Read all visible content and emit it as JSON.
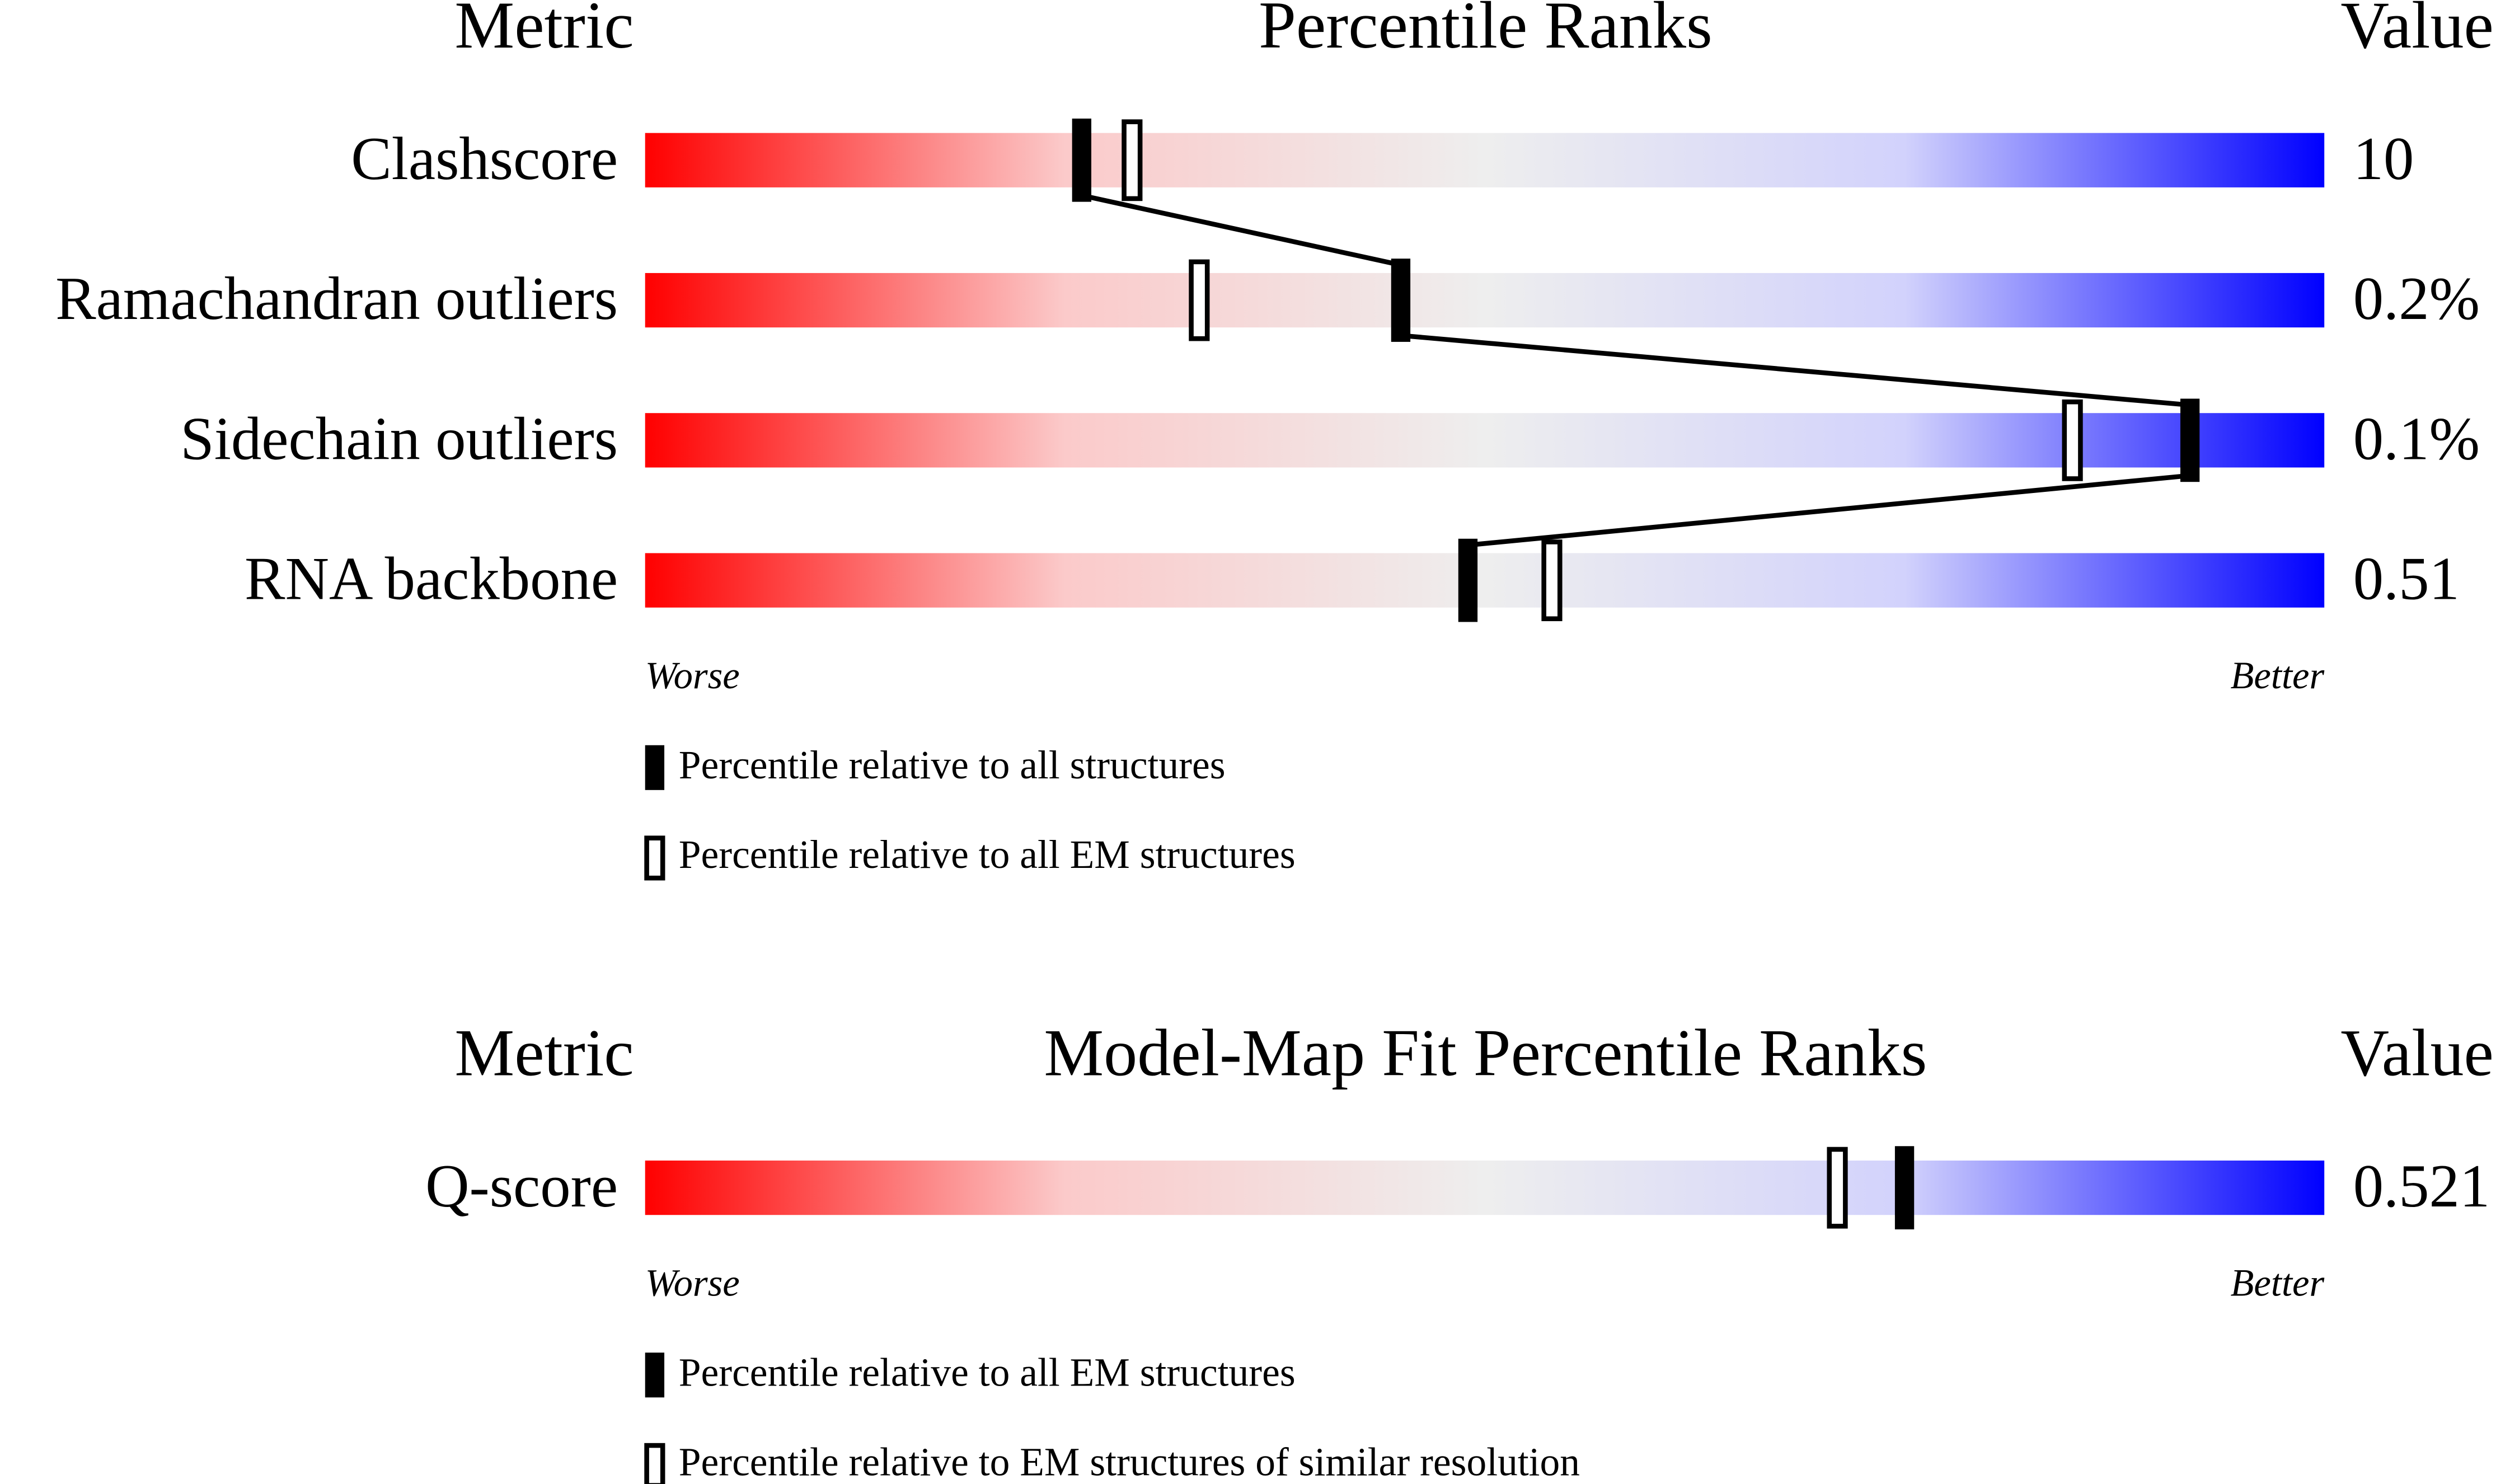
{
  "chart_data": [
    {
      "type": "percentile-slider",
      "header": {
        "metric": "Metric",
        "title": "Percentile Ranks",
        "value": "Value"
      },
      "categories": [
        "Clashscore",
        "Ramachandran outliers",
        "Sidechain outliers",
        "RNA backbone"
      ],
      "metric_values": [
        "10",
        "0.2%",
        "0.1%",
        "0.51"
      ],
      "series": [
        {
          "name": "Percentile relative to all structures",
          "style": "filled",
          "color": "#000000",
          "values": [
            26,
            45,
            92,
            49
          ]
        },
        {
          "name": "Percentile relative to all EM structures",
          "style": "open",
          "color": "#000000",
          "values": [
            29,
            33,
            85,
            54
          ]
        }
      ],
      "xlim": [
        0,
        100
      ],
      "worse": "Worse",
      "better": "Better",
      "connect": "filled",
      "gradient": [
        "#ff0000",
        "#fbcaca",
        "#eeeeee",
        "#d2d2fc",
        "#0000ff"
      ]
    },
    {
      "type": "percentile-slider",
      "header": {
        "metric": "Metric",
        "title": "Model-Map Fit Percentile Ranks",
        "value": "Value"
      },
      "categories": [
        "Q-score"
      ],
      "metric_values": [
        "0.521"
      ],
      "series": [
        {
          "name": "Percentile relative to all EM structures",
          "style": "filled",
          "color": "#000000",
          "values": [
            75
          ]
        },
        {
          "name": "Percentile relative to EM structures of similar resolution",
          "style": "open",
          "color": "#000000",
          "values": [
            71
          ]
        }
      ],
      "xlim": [
        0,
        100
      ],
      "worse": "Worse",
      "better": "Better",
      "connect": "none",
      "gradient": [
        "#ff0000",
        "#fbcaca",
        "#eeeeee",
        "#d2d2fc",
        "#0000ff"
      ]
    }
  ]
}
